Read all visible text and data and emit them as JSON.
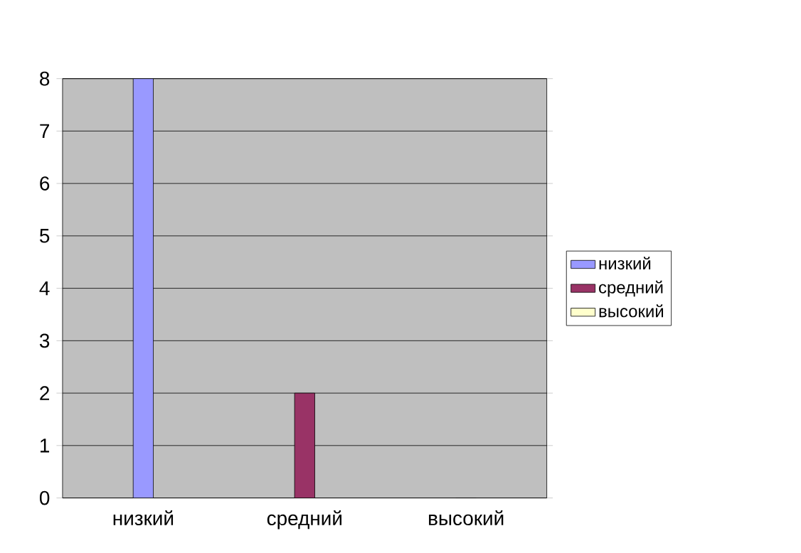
{
  "chart_data": {
    "type": "bar",
    "categories": [
      "низкий",
      "средний",
      "высокий"
    ],
    "series": [
      {
        "name": "низкий",
        "color": "#9999ff",
        "values": [
          8,
          null,
          null
        ]
      },
      {
        "name": "средний",
        "color": "#993366",
        "values": [
          null,
          2,
          null
        ]
      },
      {
        "name": "высокий",
        "color": "#ffffcc",
        "values": [
          null,
          null,
          0
        ]
      }
    ],
    "ylim": [
      0,
      8
    ],
    "yticks": [
      0,
      1,
      2,
      3,
      4,
      5,
      6,
      7,
      8
    ],
    "grid": "y",
    "legend": "right"
  }
}
